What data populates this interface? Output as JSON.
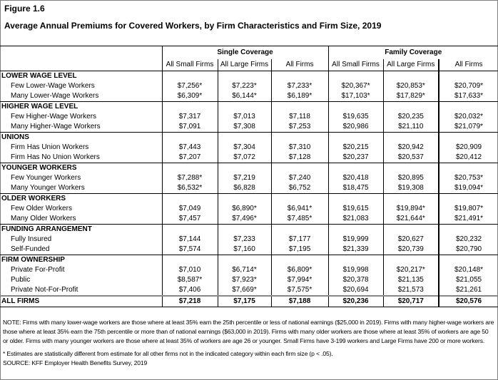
{
  "figure_label": "Figure 1.6",
  "title": "Average Annual Premiums for Covered Workers, by Firm Characteristics and Firm Size, 2019",
  "groups": [
    "Single Coverage",
    "Family Coverage"
  ],
  "columns": [
    "All Small Firms",
    "All Large Firms",
    "All Firms",
    "All Small Firms",
    "All Large Firms",
    "All Firms"
  ],
  "sections": [
    {
      "name": "LOWER WAGE LEVEL",
      "rows": [
        {
          "label": "Few Lower-Wage Workers",
          "values": [
            "$7,256*",
            "$7,223*",
            "$7,233*",
            "$20,367*",
            "$20,853*",
            "$20,709*"
          ]
        },
        {
          "label": "Many Lower-Wage Workers",
          "values": [
            "$6,309*",
            "$6,144*",
            "$6,189*",
            "$17,103*",
            "$17,829*",
            "$17,633*"
          ]
        }
      ]
    },
    {
      "name": "HIGHER WAGE LEVEL",
      "rows": [
        {
          "label": "Few Higher-Wage Workers",
          "values": [
            "$7,317",
            "$7,013",
            "$7,118",
            "$19,635",
            "$20,235",
            "$20,032*"
          ]
        },
        {
          "label": "Many Higher-Wage Workers",
          "values": [
            "$7,091",
            "$7,308",
            "$7,253",
            "$20,986",
            "$21,110",
            "$21,079*"
          ]
        }
      ]
    },
    {
      "name": "UNIONS",
      "rows": [
        {
          "label": "Firm Has Union Workers",
          "values": [
            "$7,443",
            "$7,304",
            "$7,310",
            "$20,215",
            "$20,942",
            "$20,909"
          ]
        },
        {
          "label": "Firm Has No Union Workers",
          "values": [
            "$7,207",
            "$7,072",
            "$7,128",
            "$20,237",
            "$20,537",
            "$20,412"
          ]
        }
      ]
    },
    {
      "name": "YOUNGER WORKERS",
      "rows": [
        {
          "label": "Few Younger Workers",
          "values": [
            "$7,288*",
            "$7,219",
            "$7,240",
            "$20,418",
            "$20,895",
            "$20,753*"
          ]
        },
        {
          "label": "Many Younger Workers",
          "values": [
            "$6,532*",
            "$6,828",
            "$6,752",
            "$18,475",
            "$19,308",
            "$19,094*"
          ]
        }
      ]
    },
    {
      "name": "OLDER WORKERS",
      "rows": [
        {
          "label": "Few Older Workers",
          "values": [
            "$7,049",
            "$6,890*",
            "$6,941*",
            "$19,615",
            "$19,894*",
            "$19,807*"
          ]
        },
        {
          "label": "Many Older Workers",
          "values": [
            "$7,457",
            "$7,496*",
            "$7,485*",
            "$21,083",
            "$21,644*",
            "$21,491*"
          ]
        }
      ]
    },
    {
      "name": "FUNDING ARRANGEMENT",
      "rows": [
        {
          "label": "Fully Insured",
          "values": [
            "$7,144",
            "$7,233",
            "$7,177",
            "$19,999",
            "$20,627",
            "$20,232"
          ]
        },
        {
          "label": "Self-Funded",
          "values": [
            "$7,574",
            "$7,160",
            "$7,195",
            "$21,339",
            "$20,739",
            "$20,790"
          ]
        }
      ]
    },
    {
      "name": "FIRM OWNERSHIP",
      "rows": [
        {
          "label": "Private For-Profit",
          "values": [
            "$7,010",
            "$6,714*",
            "$6,809*",
            "$19,998",
            "$20,217*",
            "$20,148*"
          ]
        },
        {
          "label": "Public",
          "values": [
            "$8,587*",
            "$7,923*",
            "$7,994*",
            "$20,378",
            "$21,135",
            "$21,055"
          ]
        },
        {
          "label": "Private Not-For-Profit",
          "values": [
            "$7,406",
            "$7,669*",
            "$7,575*",
            "$20,694",
            "$21,573",
            "$21,261"
          ]
        }
      ]
    }
  ],
  "all_firms": {
    "label": "ALL FIRMS",
    "values": [
      "$7,218",
      "$7,175",
      "$7,188",
      "$20,236",
      "$20,717",
      "$20,576"
    ]
  },
  "notes": {
    "note": "NOTE: Firms with many lower-wage workers are those where at least 35% earn the 25th percentile or less of national earnings ($25,000 in 2019). Firms with many higher-wage workers are those where at least 35% earn the 75th percentile or more than of national earnings ($63,000 in 2019). Firms with many older workers are those where at least 35% of workers are age 50 or older. Firms with many younger workers are those where at least 35% of workers are age 26 or younger. Small Firms have 3-199 workers and Large Firms have 200 or more workers.",
    "asterisk": "* Estimates are statistically different from estimate for all other firms not in the indicated category within each firm size (p < .05).",
    "source": "SOURCE: KFF Employer Health Benefits Survey, 2019"
  }
}
